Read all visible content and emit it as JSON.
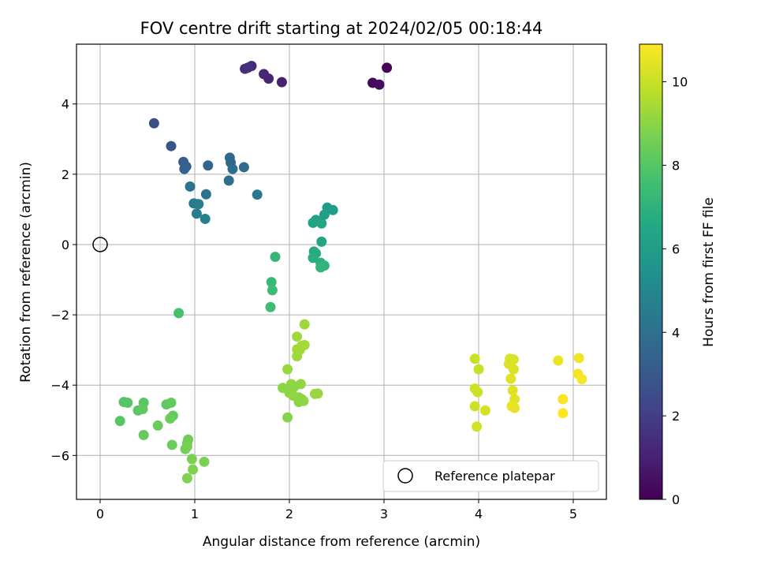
{
  "chart_data": {
    "type": "scatter",
    "title": "FOV centre drift starting at 2024/02/05 00:18:44",
    "xlabel": "Angular distance from reference (arcmin)",
    "ylabel": "Rotation from reference (arcmin)",
    "xlim": [
      -0.25,
      5.35
    ],
    "ylim": [
      -7.25,
      5.7
    ],
    "xticks": [
      0,
      1,
      2,
      3,
      4,
      5
    ],
    "yticks": [
      -6,
      -4,
      -2,
      0,
      2,
      4
    ],
    "xtick_labels": [
      "0",
      "1",
      "2",
      "3",
      "4",
      "5"
    ],
    "ytick_labels": [
      "−6",
      "−4",
      "−2",
      "0",
      "2",
      "4"
    ],
    "grid": true,
    "colormap": "viridis",
    "colorbar": {
      "label": "Hours from first FF file",
      "range": [
        0,
        10.9
      ],
      "ticks": [
        0,
        2,
        4,
        6,
        8,
        10
      ],
      "tick_labels": [
        "0",
        "2",
        "4",
        "6",
        "8",
        "10"
      ]
    },
    "reference": {
      "x": 0,
      "y": 0,
      "label": "Reference platepar"
    },
    "legend_location": "lower-right",
    "points": [
      {
        "x": 3.03,
        "y": 5.03,
        "c": 0.1
      },
      {
        "x": 2.88,
        "y": 4.6,
        "c": 0.2
      },
      {
        "x": 2.95,
        "y": 4.55,
        "c": 0.3
      },
      {
        "x": 1.92,
        "y": 4.62,
        "c": 1.0
      },
      {
        "x": 1.78,
        "y": 4.72,
        "c": 1.1
      },
      {
        "x": 1.73,
        "y": 4.85,
        "c": 1.2
      },
      {
        "x": 1.6,
        "y": 5.08,
        "c": 1.3
      },
      {
        "x": 1.53,
        "y": 5.0,
        "c": 1.4
      },
      {
        "x": 1.56,
        "y": 5.03,
        "c": 1.5
      },
      {
        "x": 0.57,
        "y": 3.45,
        "c": 2.6
      },
      {
        "x": 0.75,
        "y": 2.8,
        "c": 2.9
      },
      {
        "x": 0.88,
        "y": 2.35,
        "c": 3.2
      },
      {
        "x": 0.91,
        "y": 2.22,
        "c": 3.3
      },
      {
        "x": 0.89,
        "y": 2.15,
        "c": 3.4
      },
      {
        "x": 1.14,
        "y": 2.25,
        "c": 3.5
      },
      {
        "x": 1.37,
        "y": 2.47,
        "c": 3.6
      },
      {
        "x": 1.38,
        "y": 2.33,
        "c": 3.7
      },
      {
        "x": 1.52,
        "y": 2.2,
        "c": 3.8
      },
      {
        "x": 1.4,
        "y": 2.15,
        "c": 3.9
      },
      {
        "x": 1.36,
        "y": 1.82,
        "c": 4.0
      },
      {
        "x": 0.95,
        "y": 1.65,
        "c": 4.1
      },
      {
        "x": 1.12,
        "y": 1.43,
        "c": 4.2
      },
      {
        "x": 1.66,
        "y": 1.42,
        "c": 4.3
      },
      {
        "x": 0.99,
        "y": 1.17,
        "c": 4.4
      },
      {
        "x": 1.04,
        "y": 1.15,
        "c": 4.5
      },
      {
        "x": 1.02,
        "y": 0.88,
        "c": 4.6
      },
      {
        "x": 1.11,
        "y": 0.73,
        "c": 4.7
      },
      {
        "x": 2.4,
        "y": 1.05,
        "c": 5.9
      },
      {
        "x": 2.46,
        "y": 0.98,
        "c": 6.0
      },
      {
        "x": 2.37,
        "y": 0.85,
        "c": 6.1
      },
      {
        "x": 2.28,
        "y": 0.7,
        "c": 6.2
      },
      {
        "x": 2.25,
        "y": 0.62,
        "c": 6.3
      },
      {
        "x": 2.34,
        "y": 0.6,
        "c": 6.4
      },
      {
        "x": 2.34,
        "y": 0.08,
        "c": 6.5
      },
      {
        "x": 2.26,
        "y": -0.2,
        "c": 6.6
      },
      {
        "x": 2.28,
        "y": -0.25,
        "c": 6.7
      },
      {
        "x": 2.25,
        "y": -0.38,
        "c": 6.8
      },
      {
        "x": 2.33,
        "y": -0.52,
        "c": 6.9
      },
      {
        "x": 2.37,
        "y": -0.6,
        "c": 7.0
      },
      {
        "x": 2.33,
        "y": -0.65,
        "c": 7.1
      },
      {
        "x": 1.85,
        "y": -0.35,
        "c": 7.2
      },
      {
        "x": 1.81,
        "y": -1.07,
        "c": 7.3
      },
      {
        "x": 1.82,
        "y": -1.3,
        "c": 7.4
      },
      {
        "x": 1.8,
        "y": -1.78,
        "c": 7.5
      },
      {
        "x": 0.83,
        "y": -1.95,
        "c": 7.7
      },
      {
        "x": 0.25,
        "y": -4.48,
        "c": 8.0
      },
      {
        "x": 0.29,
        "y": -4.5,
        "c": 8.0
      },
      {
        "x": 0.46,
        "y": -4.5,
        "c": 8.1
      },
      {
        "x": 0.4,
        "y": -4.72,
        "c": 8.1
      },
      {
        "x": 0.45,
        "y": -4.68,
        "c": 8.2
      },
      {
        "x": 0.7,
        "y": -4.55,
        "c": 8.2
      },
      {
        "x": 0.75,
        "y": -4.5,
        "c": 8.3
      },
      {
        "x": 0.77,
        "y": -4.87,
        "c": 8.3
      },
      {
        "x": 0.74,
        "y": -4.95,
        "c": 8.4
      },
      {
        "x": 0.21,
        "y": -5.02,
        "c": 8.0
      },
      {
        "x": 0.61,
        "y": -5.15,
        "c": 8.4
      },
      {
        "x": 0.46,
        "y": -5.42,
        "c": 8.3
      },
      {
        "x": 0.76,
        "y": -5.7,
        "c": 8.4
      },
      {
        "x": 0.93,
        "y": -5.55,
        "c": 8.5
      },
      {
        "x": 0.92,
        "y": -5.65,
        "c": 8.5
      },
      {
        "x": 0.9,
        "y": -5.82,
        "c": 8.6
      },
      {
        "x": 0.92,
        "y": -5.75,
        "c": 8.6
      },
      {
        "x": 0.97,
        "y": -6.1,
        "c": 8.7
      },
      {
        "x": 1.1,
        "y": -6.18,
        "c": 8.7
      },
      {
        "x": 0.98,
        "y": -6.4,
        "c": 8.8
      },
      {
        "x": 0.92,
        "y": -6.65,
        "c": 8.8
      },
      {
        "x": 1.98,
        "y": -4.92,
        "c": 8.9
      },
      {
        "x": 2.16,
        "y": -2.27,
        "c": 9.3
      },
      {
        "x": 2.08,
        "y": -2.62,
        "c": 9.3
      },
      {
        "x": 2.13,
        "y": -2.88,
        "c": 9.4
      },
      {
        "x": 2.16,
        "y": -2.86,
        "c": 9.4
      },
      {
        "x": 2.08,
        "y": -2.98,
        "c": 9.4
      },
      {
        "x": 2.11,
        "y": -3.0,
        "c": 9.4
      },
      {
        "x": 2.08,
        "y": -3.18,
        "c": 9.3
      },
      {
        "x": 1.98,
        "y": -3.55,
        "c": 9.2
      },
      {
        "x": 2.02,
        "y": -3.97,
        "c": 9.1
      },
      {
        "x": 2.12,
        "y": -3.97,
        "c": 9.1
      },
      {
        "x": 1.93,
        "y": -4.08,
        "c": 9.0
      },
      {
        "x": 2.05,
        "y": -4.05,
        "c": 9.0
      },
      {
        "x": 2.0,
        "y": -4.22,
        "c": 9.0
      },
      {
        "x": 2.04,
        "y": -4.3,
        "c": 9.1
      },
      {
        "x": 2.1,
        "y": -4.35,
        "c": 9.1
      },
      {
        "x": 2.13,
        "y": -4.4,
        "c": 9.1
      },
      {
        "x": 2.15,
        "y": -4.45,
        "c": 9.1
      },
      {
        "x": 2.1,
        "y": -4.48,
        "c": 9.0
      },
      {
        "x": 2.27,
        "y": -4.25,
        "c": 9.2
      },
      {
        "x": 2.3,
        "y": -4.24,
        "c": 9.2
      },
      {
        "x": 3.96,
        "y": -3.25,
        "c": 10.0
      },
      {
        "x": 4.0,
        "y": -3.55,
        "c": 10.0
      },
      {
        "x": 3.96,
        "y": -4.1,
        "c": 10.1
      },
      {
        "x": 3.99,
        "y": -4.2,
        "c": 10.1
      },
      {
        "x": 3.96,
        "y": -4.6,
        "c": 10.1
      },
      {
        "x": 4.07,
        "y": -4.72,
        "c": 10.2
      },
      {
        "x": 3.98,
        "y": -5.18,
        "c": 10.2
      },
      {
        "x": 4.33,
        "y": -3.25,
        "c": 10.3
      },
      {
        "x": 4.37,
        "y": -3.27,
        "c": 10.3
      },
      {
        "x": 4.32,
        "y": -3.4,
        "c": 10.3
      },
      {
        "x": 4.37,
        "y": -3.55,
        "c": 10.3
      },
      {
        "x": 4.34,
        "y": -3.82,
        "c": 10.4
      },
      {
        "x": 4.36,
        "y": -4.15,
        "c": 10.4
      },
      {
        "x": 4.38,
        "y": -4.4,
        "c": 10.4
      },
      {
        "x": 4.35,
        "y": -4.6,
        "c": 10.5
      },
      {
        "x": 4.38,
        "y": -4.65,
        "c": 10.5
      },
      {
        "x": 4.84,
        "y": -3.3,
        "c": 10.6
      },
      {
        "x": 5.06,
        "y": -3.23,
        "c": 10.7
      },
      {
        "x": 5.05,
        "y": -3.68,
        "c": 10.7
      },
      {
        "x": 5.09,
        "y": -3.83,
        "c": 10.8
      },
      {
        "x": 4.89,
        "y": -4.4,
        "c": 10.8
      },
      {
        "x": 4.89,
        "y": -4.8,
        "c": 10.9
      }
    ]
  }
}
